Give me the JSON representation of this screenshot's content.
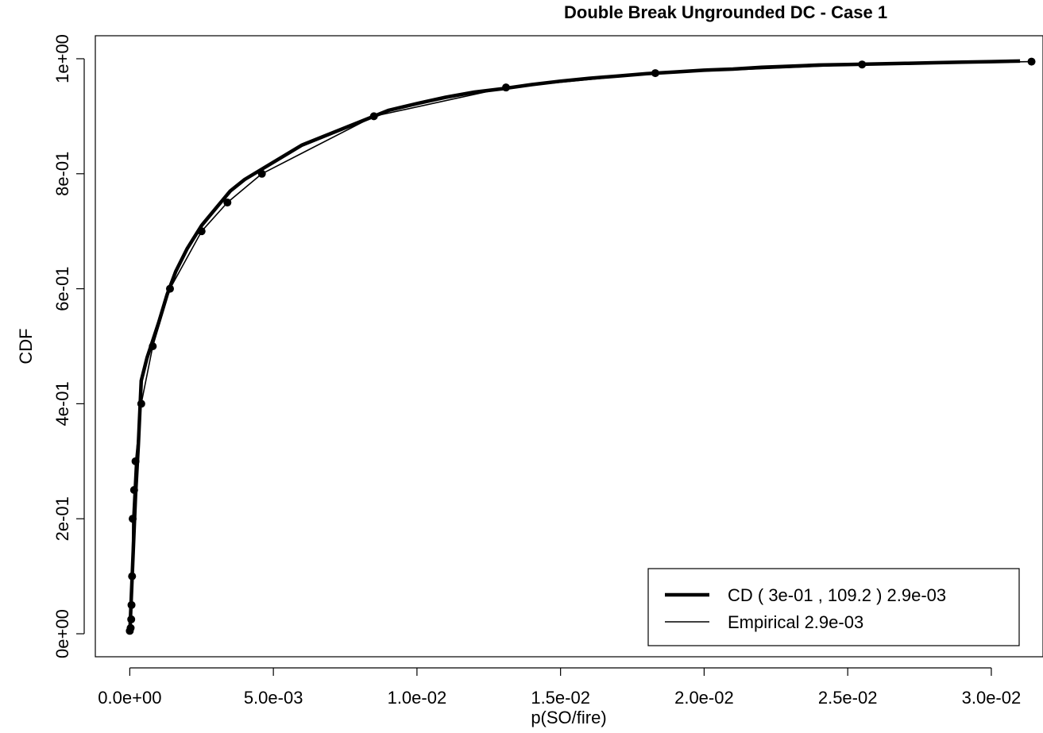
{
  "chart_data": {
    "type": "line",
    "title": "Double Break Ungrounded DC - Case 1",
    "xlabel": "p(SO/fire)",
    "ylabel": "CDF",
    "xlim": [
      -0.0012,
      0.0318
    ],
    "ylim": [
      -0.04,
      1.04
    ],
    "xticks": [
      0.0,
      0.005,
      0.01,
      0.015,
      0.02,
      0.025,
      0.03
    ],
    "xtick_labels": [
      "0.0e+00",
      "5.0e-03",
      "1.0e-02",
      "1.5e-02",
      "2.0e-02",
      "2.5e-02",
      "3.0e-02"
    ],
    "yticks": [
      0.0,
      0.2,
      0.4,
      0.6,
      0.8,
      1.0
    ],
    "ytick_labels": [
      "0e+00",
      "2e-01",
      "4e-01",
      "6e-01",
      "8e-01",
      "1e+00"
    ],
    "grid": false,
    "legend_position": "bottom-right",
    "series": [
      {
        "name": "CD ( 3e-01 , 109.2 ) 2.9e-03",
        "style": "thick",
        "x": [
          0.0,
          5e-05,
          0.0001,
          0.00015,
          0.0002,
          0.0003,
          0.0004,
          0.0006,
          0.0008,
          0.001,
          0.0013,
          0.0016,
          0.002,
          0.0025,
          0.003,
          0.0035,
          0.004,
          0.005,
          0.006,
          0.007,
          0.008,
          0.009,
          0.01,
          0.011,
          0.012,
          0.013,
          0.014,
          0.015,
          0.016,
          0.017,
          0.018,
          0.019,
          0.02,
          0.021,
          0.022,
          0.023,
          0.024,
          0.025,
          0.026,
          0.027,
          0.028,
          0.029,
          0.03,
          0.031
        ],
        "y": [
          0.0,
          0.06,
          0.12,
          0.18,
          0.24,
          0.33,
          0.44,
          0.48,
          0.51,
          0.54,
          0.59,
          0.63,
          0.67,
          0.71,
          0.74,
          0.77,
          0.79,
          0.82,
          0.85,
          0.87,
          0.89,
          0.91,
          0.922,
          0.933,
          0.942,
          0.948,
          0.955,
          0.961,
          0.966,
          0.97,
          0.974,
          0.977,
          0.98,
          0.982,
          0.985,
          0.987,
          0.989,
          0.99,
          0.991,
          0.992,
          0.993,
          0.994,
          0.995,
          0.996
        ]
      },
      {
        "name": "Empirical 2.9e-03",
        "style": "thin",
        "x": [
          0.0,
          3e-05,
          5e-05,
          6e-05,
          8e-05,
          0.0001,
          0.00015,
          0.0002,
          0.0004,
          0.0008,
          0.0014,
          0.0025,
          0.0034,
          0.0046,
          0.0085,
          0.0131,
          0.0183,
          0.0255,
          0.0314
        ],
        "y": [
          0.005,
          0.01,
          0.025,
          0.05,
          0.1,
          0.2,
          0.25,
          0.3,
          0.4,
          0.5,
          0.6,
          0.7,
          0.75,
          0.8,
          0.9,
          0.95,
          0.975,
          0.99,
          0.995
        ]
      }
    ]
  }
}
